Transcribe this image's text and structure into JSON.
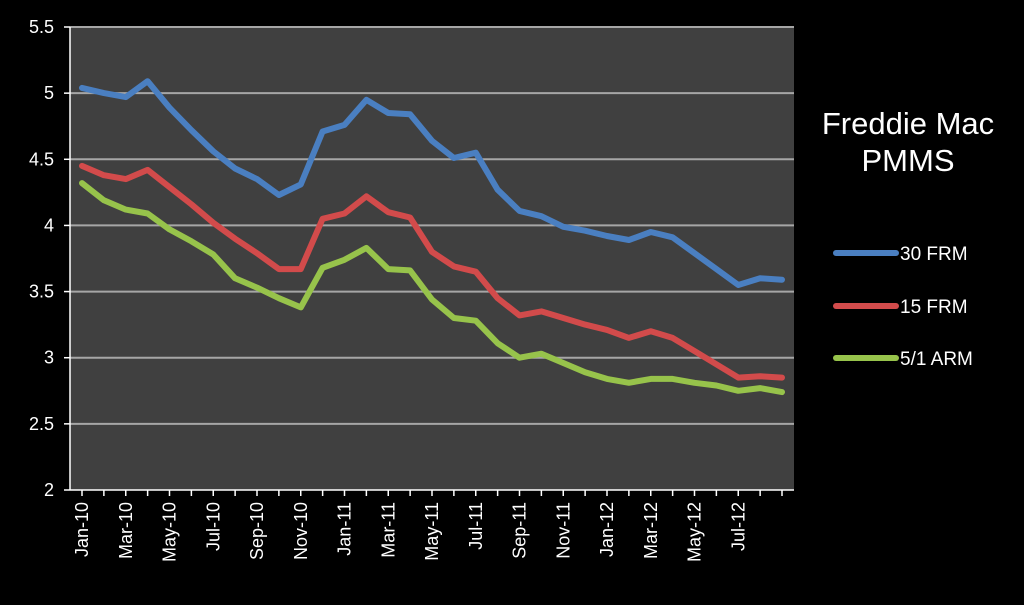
{
  "chart_data": {
    "type": "line",
    "title": "Freddie Mac PMMS",
    "title_lines": [
      "Freddie Mac",
      "PMMS"
    ],
    "xlabel": "",
    "ylabel": "",
    "ylim": [
      2,
      5.5
    ],
    "yticks": [
      "2",
      "2.5",
      "3",
      "3.5",
      "4",
      "4.5",
      "5",
      "5.5"
    ],
    "ytick_values": [
      2,
      2.5,
      3,
      3.5,
      4,
      4.5,
      5,
      5.5
    ],
    "x": [
      "Jan-10",
      "Feb-10",
      "Mar-10",
      "Apr-10",
      "May-10",
      "Jun-10",
      "Jul-10",
      "Aug-10",
      "Sep-10",
      "Oct-10",
      "Nov-10",
      "Dec-10",
      "Jan-11",
      "Feb-11",
      "Mar-11",
      "Apr-11",
      "May-11",
      "Jun-11",
      "Jul-11",
      "Aug-11",
      "Sep-11",
      "Oct-11",
      "Nov-11",
      "Dec-11",
      "Jan-12",
      "Feb-12",
      "Mar-12",
      "Apr-12",
      "May-12",
      "Jun-12",
      "Jul-12",
      "Aug-12",
      "Sep-12"
    ],
    "xtick_labels": [
      "Jan-10",
      "Mar-10",
      "May-10",
      "Jul-10",
      "Sep-10",
      "Nov-10",
      "Jan-11",
      "Mar-11",
      "May-11",
      "Jul-11",
      "Sep-11",
      "Nov-11",
      "Jan-12",
      "Mar-12",
      "May-12",
      "Jul-12"
    ],
    "grid": true,
    "legend_position": "right",
    "plot_background": "#404040",
    "grid_color": "#a6a6a6",
    "axis_color": "#ffffff",
    "series": [
      {
        "name": "30 FRM",
        "color": "#4a7fc1",
        "values": [
          5.04,
          5.0,
          4.97,
          5.09,
          4.89,
          4.72,
          4.56,
          4.43,
          4.35,
          4.23,
          4.31,
          4.71,
          4.76,
          4.95,
          4.85,
          4.84,
          4.64,
          4.51,
          4.55,
          4.27,
          4.11,
          4.07,
          3.99,
          3.96,
          3.92,
          3.89,
          3.95,
          3.91,
          3.79,
          3.67,
          3.55,
          3.6,
          3.59
        ]
      },
      {
        "name": "15 FRM",
        "color": "#d24b4b",
        "values": [
          4.45,
          4.38,
          4.35,
          4.42,
          4.29,
          4.16,
          4.02,
          3.9,
          3.79,
          3.67,
          3.67,
          4.05,
          4.09,
          4.22,
          4.1,
          4.06,
          3.8,
          3.69,
          3.65,
          3.45,
          3.32,
          3.35,
          3.3,
          3.25,
          3.21,
          3.15,
          3.2,
          3.15,
          3.05,
          2.95,
          2.85,
          2.86,
          2.85
        ]
      },
      {
        "name": "5/1 ARM",
        "color": "#97c34b",
        "values": [
          4.32,
          4.19,
          4.12,
          4.09,
          3.97,
          3.88,
          3.78,
          3.6,
          3.53,
          3.45,
          3.38,
          3.68,
          3.74,
          3.83,
          3.67,
          3.66,
          3.44,
          3.3,
          3.28,
          3.11,
          3.0,
          3.03,
          2.96,
          2.89,
          2.84,
          2.81,
          2.84,
          2.84,
          2.81,
          2.79,
          2.75,
          2.77,
          2.74
        ]
      }
    ]
  }
}
